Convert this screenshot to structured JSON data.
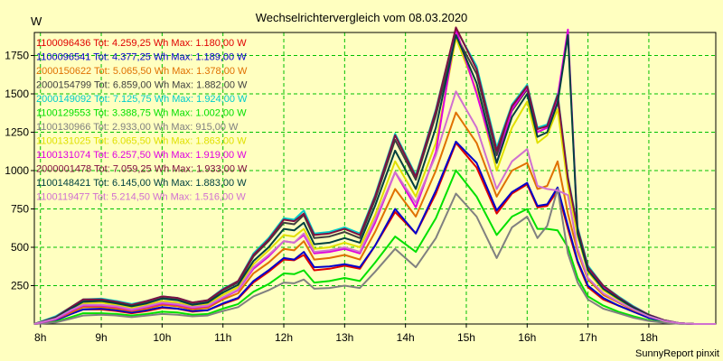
{
  "chart_data": {
    "type": "line",
    "title": "Wechselrichtervergleich vom 08.03.2020",
    "ylabel": "W",
    "xlabel": "",
    "footer": "SunnyReport pinxit",
    "ylim": [
      0,
      1900
    ],
    "xlim": [
      7.9,
      19.1
    ],
    "y_ticks": [
      250,
      500,
      750,
      1000,
      1250,
      1500,
      1750
    ],
    "x_ticks": [
      {
        "value": 8,
        "label": "8h"
      },
      {
        "value": 9,
        "label": "9h"
      },
      {
        "value": 10,
        "label": "10h"
      },
      {
        "value": 11,
        "label": "11h"
      },
      {
        "value": 12,
        "label": "12h"
      },
      {
        "value": 13,
        "label": "13h"
      },
      {
        "value": 14,
        "label": "14h"
      },
      {
        "value": 15,
        "label": "15h"
      },
      {
        "value": 16,
        "label": "16h"
      },
      {
        "value": 17,
        "label": "17h"
      },
      {
        "value": 18,
        "label": "18h"
      }
    ],
    "grid": true,
    "x": [
      7.9,
      8.25,
      8.5,
      8.7,
      9.0,
      9.25,
      9.5,
      9.75,
      10.0,
      10.25,
      10.5,
      10.75,
      11.0,
      11.25,
      11.5,
      11.75,
      12.0,
      12.17,
      12.33,
      12.5,
      12.75,
      13.0,
      13.25,
      13.5,
      13.83,
      14.17,
      14.5,
      14.83,
      15.17,
      15.5,
      15.75,
      16.0,
      16.17,
      16.33,
      16.5,
      16.67,
      16.83,
      17.0,
      17.25,
      17.5,
      17.75,
      18.0,
      18.25,
      18.5,
      18.75,
      19.1
    ],
    "series": [
      {
        "name": "1100096436 Tot: 4.259,25 Wh Max: 1.180,00 W",
        "color": "#e00000",
        "values": [
          0,
          25,
          65,
          95,
          95,
          85,
          70,
          85,
          105,
          100,
          80,
          90,
          130,
          165,
          270,
          340,
          420,
          415,
          450,
          350,
          360,
          380,
          360,
          510,
          730,
          590,
          850,
          1180,
          1020,
          720,
          850,
          910,
          760,
          770,
          870,
          620,
          400,
          240,
          160,
          120,
          80,
          40,
          15,
          5,
          0,
          0
        ]
      },
      {
        "name": "1100096541 Tot: 4.377,25 Wh Max: 1.189,00 W",
        "color": "#0000cc",
        "values": [
          0,
          25,
          65,
          95,
          100,
          90,
          75,
          90,
          110,
          100,
          85,
          90,
          135,
          170,
          280,
          350,
          430,
          420,
          470,
          370,
          375,
          390,
          370,
          510,
          750,
          590,
          870,
          1189,
          1050,
          740,
          860,
          920,
          770,
          780,
          890,
          640,
          410,
          250,
          170,
          120,
          80,
          40,
          15,
          5,
          0,
          0
        ]
      },
      {
        "name": "2000150622 Tot: 5.065,50 Wh Max: 1.378,00 W",
        "color": "#e07000",
        "values": [
          0,
          30,
          75,
          110,
          110,
          100,
          85,
          100,
          125,
          115,
          95,
          105,
          160,
          200,
          330,
          400,
          490,
          480,
          540,
          420,
          430,
          450,
          420,
          600,
          880,
          700,
          1000,
          1378,
          1180,
          830,
          1000,
          1050,
          880,
          900,
          1060,
          720,
          470,
          290,
          190,
          140,
          90,
          50,
          20,
          5,
          0,
          0
        ]
      },
      {
        "name": "2000154799 Tot: 6.859,00 Wh Max: 1.882,00 W",
        "color": "#404040",
        "values": [
          0,
          45,
          105,
          150,
          155,
          140,
          120,
          145,
          175,
          165,
          135,
          150,
          220,
          270,
          440,
          540,
          660,
          650,
          710,
          560,
          570,
          600,
          560,
          810,
          1200,
          940,
          1360,
          1882,
          1630,
          1100,
          1390,
          1530,
          1250,
          1280,
          1470,
          920,
          600,
          360,
          240,
          170,
          110,
          60,
          25,
          5,
          0,
          0
        ]
      },
      {
        "name": "2000149092 Tot: 7.125,75 Wh Max: 1.924,00 W",
        "color": "#00cccc",
        "values": [
          0,
          50,
          110,
          160,
          165,
          150,
          130,
          150,
          180,
          170,
          140,
          155,
          230,
          280,
          460,
          560,
          690,
          680,
          740,
          590,
          600,
          630,
          590,
          840,
          1240,
          970,
          1400,
          1924,
          1680,
          1150,
          1430,
          1560,
          1280,
          1300,
          1500,
          960,
          630,
          380,
          250,
          180,
          115,
          60,
          25,
          5,
          0,
          0
        ]
      },
      {
        "name": "1100129553 Tot: 3.388,75 Wh Max: 1.002,00 W",
        "color": "#00e000",
        "values": [
          0,
          15,
          45,
          70,
          70,
          65,
          55,
          65,
          80,
          75,
          60,
          65,
          100,
          130,
          210,
          260,
          330,
          325,
          350,
          270,
          280,
          300,
          280,
          400,
          570,
          470,
          690,
          1002,
          830,
          580,
          700,
          750,
          620,
          620,
          610,
          500,
          300,
          180,
          120,
          80,
          50,
          25,
          10,
          3,
          0,
          0
        ]
      },
      {
        "name": "1100130966 Tot: 2.933,00 Wh Max: 915,00 W",
        "color": "#808080",
        "values": [
          0,
          10,
          35,
          55,
          60,
          55,
          45,
          55,
          65,
          60,
          50,
          55,
          85,
          110,
          180,
          220,
          270,
          265,
          290,
          230,
          235,
          250,
          235,
          340,
          490,
          370,
          560,
          850,
          700,
          430,
          630,
          700,
          560,
          640,
          880,
          460,
          270,
          160,
          100,
          70,
          40,
          20,
          8,
          2,
          0,
          0
        ]
      },
      {
        "name": "1100131025 Tot: 6.065,50 Wh Max: 1.863,00 W",
        "color": "#e0e000",
        "values": [
          0,
          40,
          95,
          135,
          140,
          125,
          105,
          125,
          150,
          140,
          115,
          130,
          190,
          240,
          390,
          480,
          580,
          570,
          620,
          490,
          500,
          530,
          500,
          710,
          1060,
          830,
          1180,
          1863,
          1520,
          1000,
          1280,
          1450,
          1180,
          1230,
          1400,
          900,
          570,
          340,
          220,
          160,
          100,
          50,
          20,
          5,
          0,
          0
        ]
      },
      {
        "name": "1100131074 Tot: 6.257,50 Wh Max: 1.919,00 W",
        "color": "#e000e0",
        "values": [
          0,
          30,
          85,
          120,
          120,
          110,
          90,
          110,
          135,
          125,
          105,
          115,
          170,
          220,
          360,
          440,
          540,
          530,
          580,
          460,
          470,
          490,
          460,
          660,
          990,
          760,
          1120,
          1919,
          1500,
          1050,
          1400,
          1540,
          1250,
          1280,
          1480,
          1919,
          600,
          360,
          240,
          170,
          110,
          60,
          25,
          5,
          0,
          0
        ]
      },
      {
        "name": "2000001478 Tot: 7.059,25 Wh Max: 1.933,00 W",
        "color": "#801040",
        "values": [
          0,
          45,
          110,
          160,
          160,
          145,
          125,
          150,
          180,
          170,
          140,
          155,
          225,
          280,
          450,
          550,
          680,
          670,
          720,
          580,
          590,
          620,
          580,
          830,
          1230,
          960,
          1390,
          1933,
          1660,
          1130,
          1420,
          1550,
          1270,
          1290,
          1490,
          950,
          620,
          370,
          250,
          175,
          110,
          60,
          25,
          5,
          0,
          0
        ]
      },
      {
        "name": "1100148421 Tot: 6.145,00 Wh Max: 1.883,00 W",
        "color": "#004040",
        "values": [
          0,
          40,
          100,
          145,
          150,
          135,
          115,
          135,
          165,
          155,
          125,
          140,
          205,
          255,
          410,
          500,
          620,
          610,
          660,
          520,
          530,
          560,
          530,
          770,
          1130,
          880,
          1280,
          1883,
          1570,
          1050,
          1350,
          1500,
          1220,
          1250,
          1440,
          1883,
          590,
          350,
          230,
          165,
          105,
          55,
          22,
          5,
          0,
          0
        ]
      },
      {
        "name": "1100119477 Tot: 5.214,50 Wh Max: 1.516,00 W",
        "color": "#d070d0",
        "values": [
          0,
          35,
          90,
          125,
          125,
          115,
          95,
          115,
          140,
          130,
          110,
          120,
          175,
          225,
          370,
          450,
          540,
          530,
          590,
          470,
          480,
          500,
          470,
          680,
          990,
          790,
          1100,
          1516,
          1280,
          880,
          1060,
          1140,
          900,
          880,
          870,
          840,
          490,
          300,
          200,
          145,
          95,
          50,
          20,
          5,
          0,
          0
        ]
      }
    ]
  }
}
